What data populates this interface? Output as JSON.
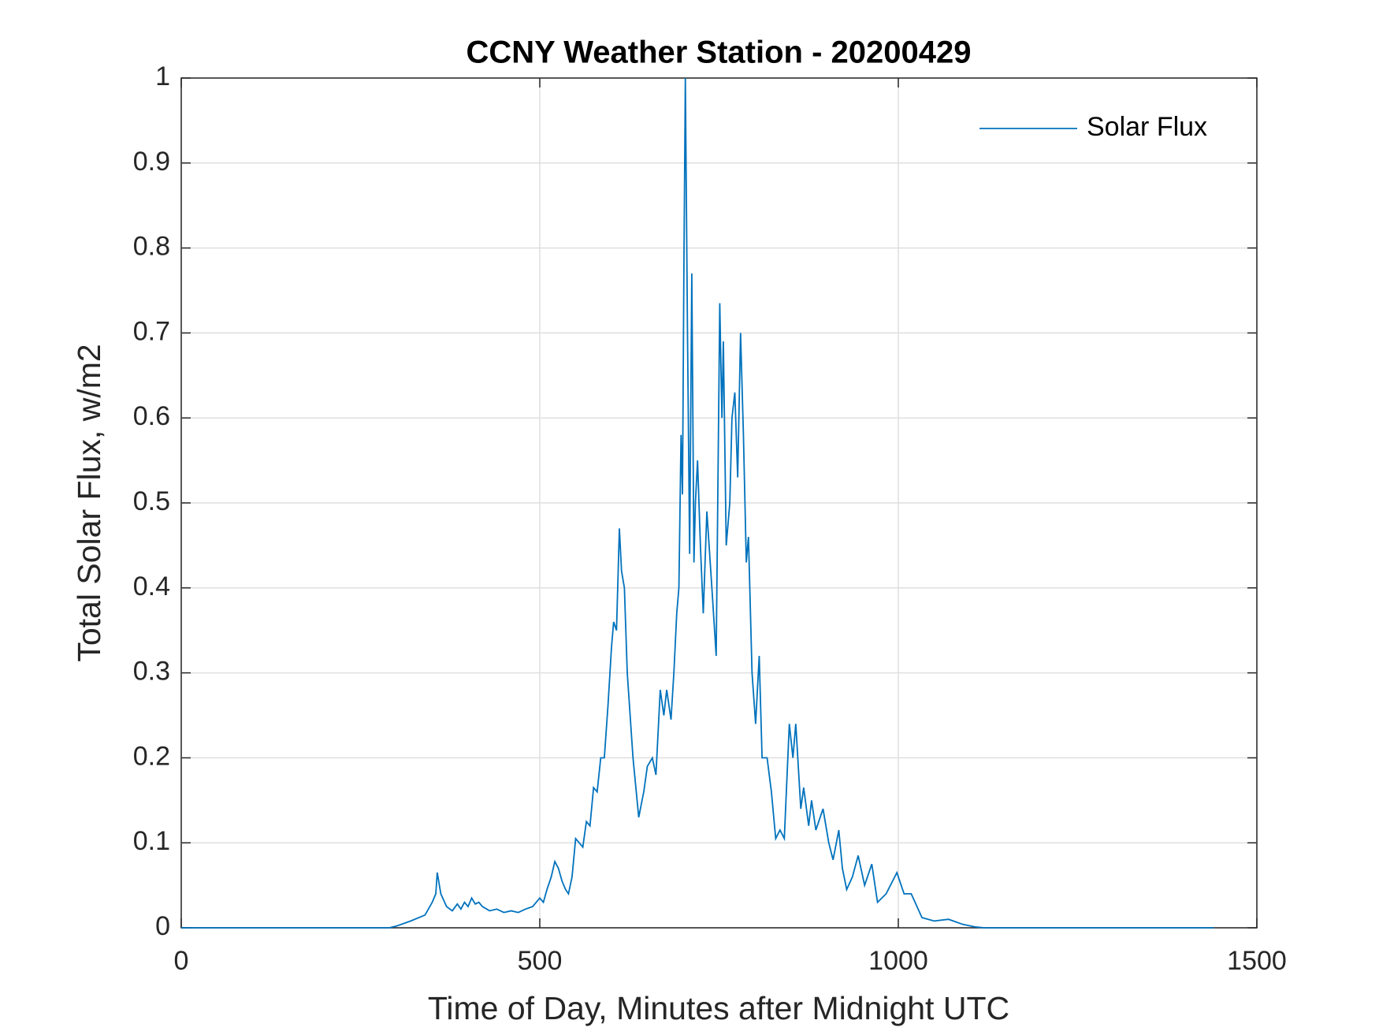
{
  "chart_data": {
    "type": "line",
    "title": "CCNY Weather Station - 20200429",
    "x_label": "Time of Day, Minutes after Midnight UTC",
    "y_label": "Total Solar Flux, w/m2",
    "legend": "upper right",
    "grid": true,
    "xlim": [
      0,
      1500
    ],
    "xticks": [
      0,
      500,
      1000,
      1500
    ],
    "ylim": [
      0,
      1
    ],
    "yticks": [
      0,
      0.1,
      0.2,
      0.3,
      0.4,
      0.5,
      0.6,
      0.7,
      0.8,
      0.9,
      1
    ],
    "x": [
      0,
      290,
      300,
      320,
      340,
      350,
      355,
      357,
      362,
      370,
      378,
      385,
      390,
      395,
      400,
      405,
      410,
      415,
      420,
      430,
      440,
      450,
      460,
      470,
      480,
      490,
      495,
      500,
      505,
      510,
      516,
      521,
      526,
      531,
      536,
      540,
      545,
      550,
      555,
      560,
      565,
      570,
      575,
      580,
      585,
      590,
      595,
      600,
      603,
      607,
      611,
      614,
      618,
      622,
      626,
      630,
      638,
      645,
      650,
      657,
      662,
      668,
      673,
      677,
      683,
      687,
      691,
      694,
      697,
      699,
      701,
      703,
      706,
      709,
      712,
      715,
      717,
      720,
      724,
      728,
      733,
      740,
      746,
      751,
      754,
      756,
      760,
      765,
      768,
      772,
      776,
      780,
      784,
      788,
      791,
      796,
      801,
      806,
      810,
      817,
      823,
      829,
      835,
      841,
      848,
      853,
      857,
      864,
      868,
      875,
      879,
      885,
      895,
      903,
      909,
      917,
      922,
      928,
      936,
      944,
      953,
      963,
      971,
      983,
      998,
      1008,
      1018,
      1033,
      1050,
      1070,
      1090,
      1107,
      1120,
      1440
    ],
    "series": [
      {
        "name": "Solar Flux",
        "color": "#0072bd",
        "values": [
          0,
          0,
          0.002,
          0.008,
          0.015,
          0.03,
          0.04,
          0.065,
          0.04,
          0.025,
          0.02,
          0.028,
          0.022,
          0.03,
          0.025,
          0.035,
          0.028,
          0.03,
          0.025,
          0.02,
          0.022,
          0.018,
          0.02,
          0.018,
          0.022,
          0.025,
          0.03,
          0.035,
          0.03,
          0.045,
          0.06,
          0.078,
          0.07,
          0.055,
          0.045,
          0.04,
          0.06,
          0.105,
          0.1,
          0.095,
          0.125,
          0.12,
          0.165,
          0.16,
          0.2,
          0.2,
          0.26,
          0.33,
          0.36,
          0.35,
          0.47,
          0.42,
          0.4,
          0.3,
          0.25,
          0.2,
          0.13,
          0.16,
          0.19,
          0.2,
          0.18,
          0.28,
          0.25,
          0.28,
          0.245,
          0.3,
          0.37,
          0.4,
          0.58,
          0.51,
          0.78,
          1.0,
          0.7,
          0.44,
          0.77,
          0.43,
          0.5,
          0.55,
          0.45,
          0.37,
          0.49,
          0.4,
          0.32,
          0.735,
          0.6,
          0.69,
          0.45,
          0.5,
          0.6,
          0.63,
          0.53,
          0.7,
          0.58,
          0.43,
          0.46,
          0.3,
          0.24,
          0.32,
          0.2,
          0.2,
          0.16,
          0.105,
          0.115,
          0.105,
          0.24,
          0.2,
          0.24,
          0.14,
          0.165,
          0.12,
          0.15,
          0.115,
          0.14,
          0.1,
          0.08,
          0.115,
          0.07,
          0.045,
          0.06,
          0.085,
          0.05,
          0.075,
          0.03,
          0.04,
          0.065,
          0.04,
          0.04,
          0.012,
          0.008,
          0.01,
          0.004,
          0.001,
          0,
          0
        ]
      }
    ]
  }
}
